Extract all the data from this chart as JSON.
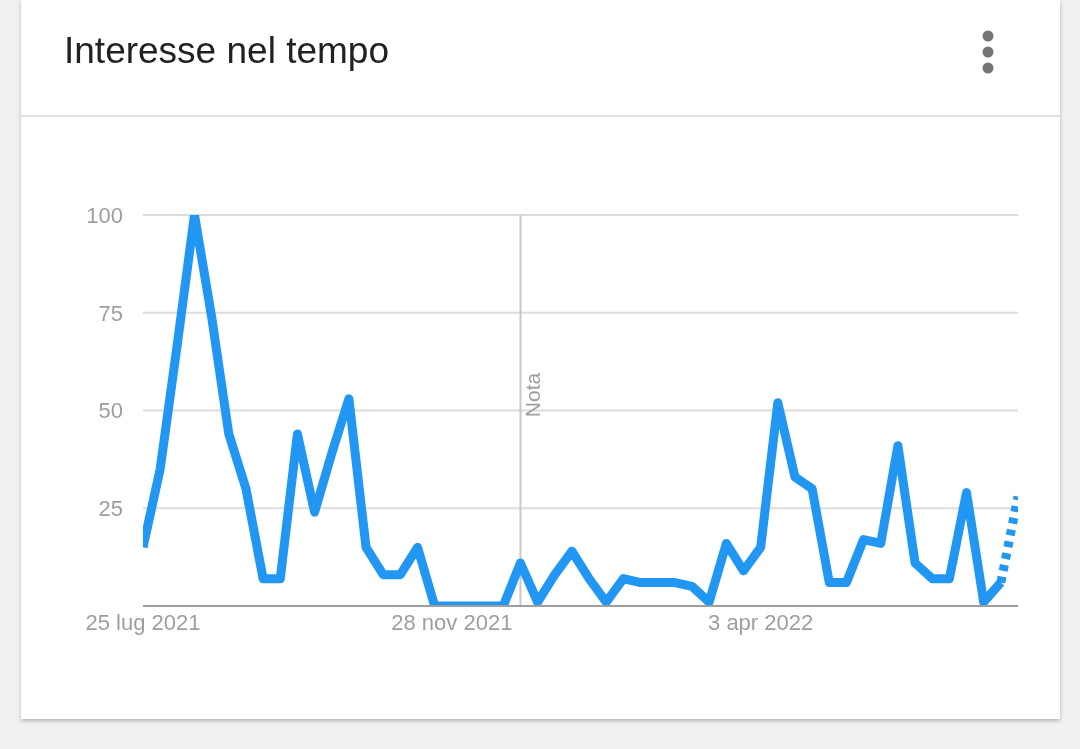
{
  "chart_data": {
    "type": "line",
    "title": "Interesse nel tempo",
    "x": [
      "2021-07-25",
      "2021-08-01",
      "2021-08-08",
      "2021-08-15",
      "2021-08-22",
      "2021-08-29",
      "2021-09-05",
      "2021-09-12",
      "2021-09-19",
      "2021-09-26",
      "2021-10-03",
      "2021-10-10",
      "2021-10-17",
      "2021-10-24",
      "2021-10-31",
      "2021-11-07",
      "2021-11-14",
      "2021-11-21",
      "2021-11-28",
      "2021-12-05",
      "2021-12-12",
      "2021-12-19",
      "2021-12-26",
      "2022-01-02",
      "2022-01-09",
      "2022-01-16",
      "2022-01-23",
      "2022-01-30",
      "2022-02-06",
      "2022-02-13",
      "2022-02-20",
      "2022-02-27",
      "2022-03-06",
      "2022-03-13",
      "2022-03-20",
      "2022-03-27",
      "2022-04-03",
      "2022-04-10",
      "2022-04-17",
      "2022-04-24",
      "2022-05-01",
      "2022-05-08",
      "2022-05-15",
      "2022-05-22",
      "2022-05-29",
      "2022-06-05",
      "2022-06-12",
      "2022-06-19",
      "2022-06-26",
      "2022-07-03",
      "2022-07-10",
      "2022-07-17"
    ],
    "series": [
      {
        "color": "#2196f3",
        "line_style": "solid",
        "values": [
          15,
          35,
          67,
          100,
          74,
          44,
          30,
          7,
          7,
          44,
          24,
          39,
          53,
          15,
          8,
          8,
          15,
          0,
          0,
          0,
          0,
          0,
          11,
          1,
          8,
          14,
          7,
          1,
          7,
          6,
          6,
          6,
          5,
          1,
          16,
          9,
          15,
          52,
          33,
          30,
          6,
          6,
          17,
          16,
          41,
          11,
          7,
          7,
          29,
          1,
          6,
          null
        ]
      },
      {
        "color": "#2196f3",
        "line_style": "dotted",
        "values": [
          null,
          null,
          null,
          null,
          null,
          null,
          null,
          null,
          null,
          null,
          null,
          null,
          null,
          null,
          null,
          null,
          null,
          null,
          null,
          null,
          null,
          null,
          null,
          null,
          null,
          null,
          null,
          null,
          null,
          null,
          null,
          null,
          null,
          null,
          null,
          null,
          null,
          null,
          null,
          null,
          null,
          null,
          null,
          null,
          null,
          null,
          null,
          null,
          null,
          null,
          6,
          28
        ]
      }
    ],
    "xlim": [
      "2021-07-25",
      "2022-07-17"
    ],
    "xticks": [
      {
        "value": "2021-07-25",
        "label": "25 lug 2021"
      },
      {
        "value": "2021-11-28",
        "label": "28 nov 2021"
      },
      {
        "value": "2022-04-03",
        "label": "3 apr 2022"
      }
    ],
    "ylim": [
      0,
      100
    ],
    "yticks": [
      {
        "value": 0,
        "label": null
      },
      25,
      50,
      75,
      100
    ],
    "grid": "y",
    "marker": "none",
    "ref_lines": [
      {
        "axis": "x",
        "value": "2021-12-26",
        "label": "Nota",
        "color": "#c8c8c8"
      }
    ]
  }
}
